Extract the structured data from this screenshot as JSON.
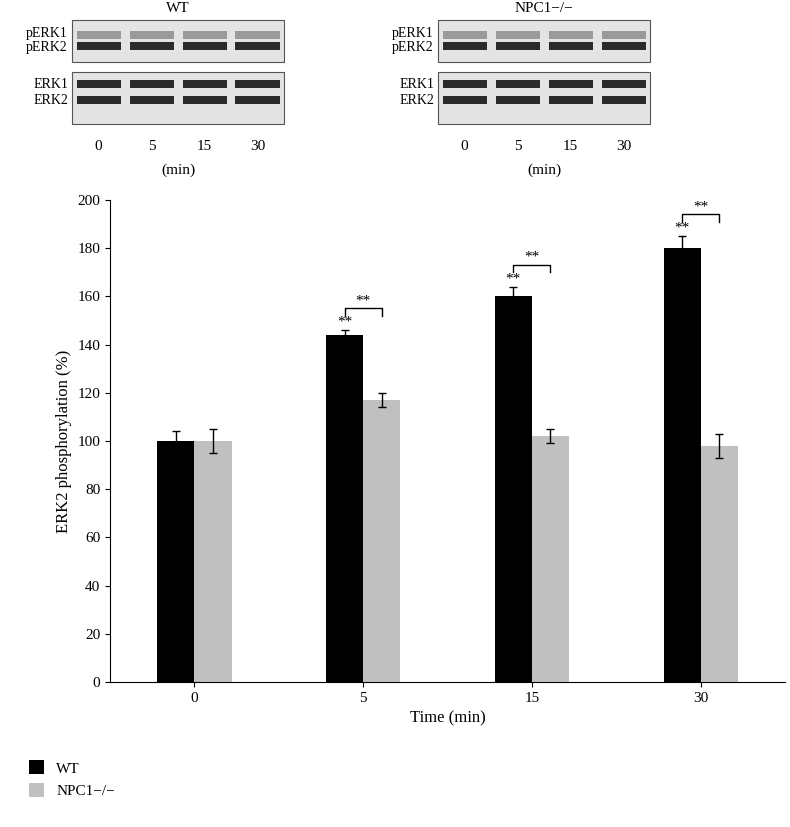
{
  "chart_data": {
    "type": "bar",
    "categories": [
      "0",
      "5",
      "15",
      "30"
    ],
    "x_label": "Time (min)",
    "y_label": "ERK2 phosphorylation (%)",
    "ylim": [
      0,
      200
    ],
    "yticks": [
      0,
      20,
      40,
      60,
      80,
      100,
      120,
      140,
      160,
      180,
      200
    ],
    "legend": "lower left",
    "series": [
      {
        "name": "WT",
        "color": "#000000",
        "values": [
          100,
          144,
          160,
          180
        ],
        "errors": [
          4,
          2,
          4,
          5
        ]
      },
      {
        "name": "NPC1−/−",
        "color": "#c0c0c0",
        "values": [
          100,
          117,
          102,
          98
        ],
        "errors": [
          5,
          3,
          3,
          5
        ]
      }
    ],
    "significance": [
      {
        "category": "5",
        "series": "WT",
        "text": "**"
      },
      {
        "category": "15",
        "series": "WT",
        "text": "**"
      },
      {
        "category": "30",
        "series": "WT",
        "text": "**"
      }
    ],
    "comparisons": [
      {
        "category": "5",
        "text": "**"
      },
      {
        "category": "15",
        "text": "**"
      },
      {
        "category": "30",
        "text": "**"
      }
    ]
  },
  "blots": {
    "panels": [
      {
        "title": "WT",
        "upper_labels": [
          "pERK1",
          "pERK2"
        ],
        "lower_labels": [
          "ERK1",
          "ERK2"
        ],
        "lanes": [
          "0",
          "5",
          "15",
          "30"
        ],
        "unit": "(min)"
      },
      {
        "title": "NPC1−/−",
        "upper_labels": [
          "pERK1",
          "pERK2"
        ],
        "lower_labels": [
          "ERK1",
          "ERK2"
        ],
        "lanes": [
          "0",
          "5",
          "15",
          "30"
        ],
        "unit": "(min)"
      }
    ]
  }
}
